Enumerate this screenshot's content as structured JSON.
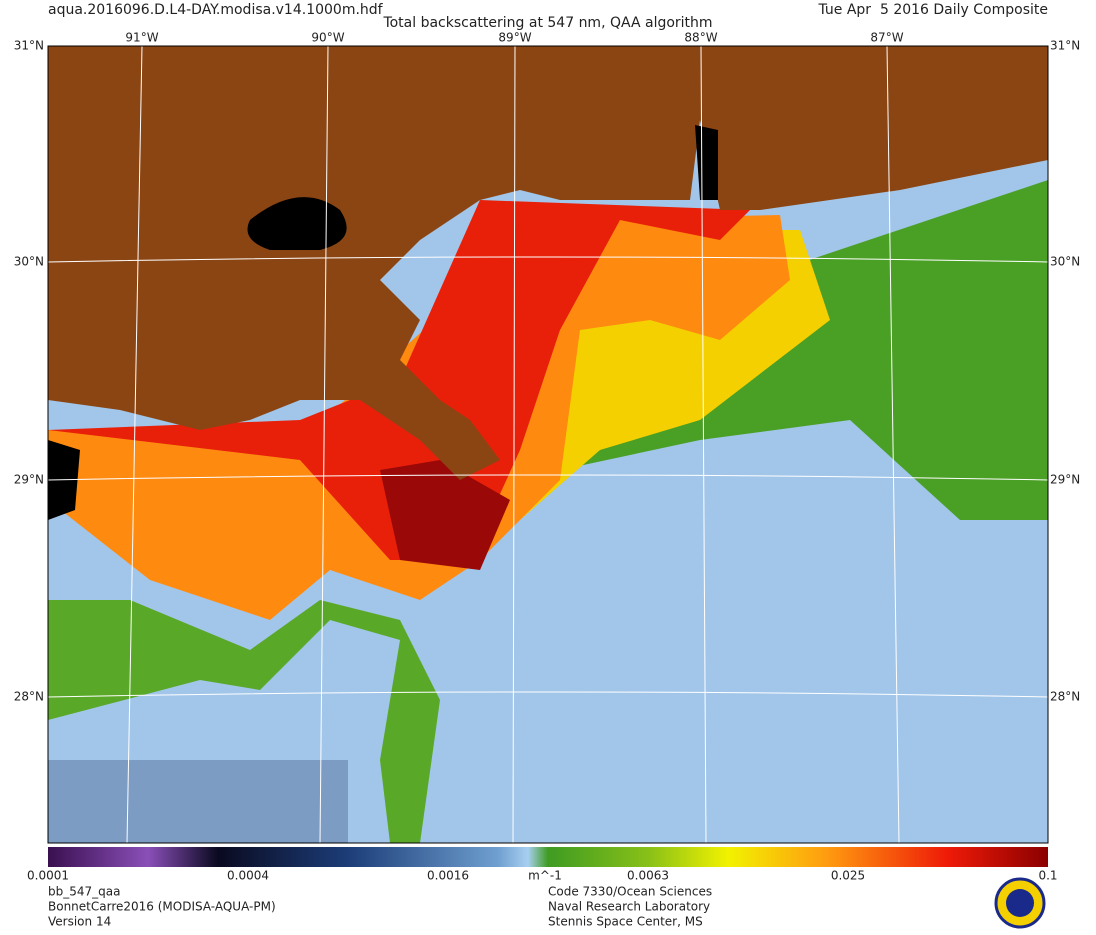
{
  "header": {
    "file": "aqua.2016096.D.L4-DAY.modisa.v14.1000m.hdf",
    "title": "Total backscattering at 547 nm, QAA algorithm",
    "date": "Tue Apr  5 2016 Daily Composite"
  },
  "map": {
    "longitudes": [
      "91°W",
      "90°W",
      "89°W",
      "88°W",
      "87°W"
    ],
    "latitudes": [
      "31°N",
      "30°N",
      "29°N",
      "28°N"
    ]
  },
  "colorbar": {
    "ticks": [
      "0.0001",
      "0.0004",
      "0.0016",
      "0.0063",
      "0.025",
      "0.1"
    ],
    "unit": "m^-1"
  },
  "footer": {
    "left": [
      "bb_547_qaa",
      "BonnetCarre2016 (MODISA-AQUA-PM)",
      "Version 14"
    ],
    "right": [
      "Code 7330/Ocean Sciences",
      "Naval Research Laboratory",
      "Stennis Space Center, MS"
    ]
  }
}
